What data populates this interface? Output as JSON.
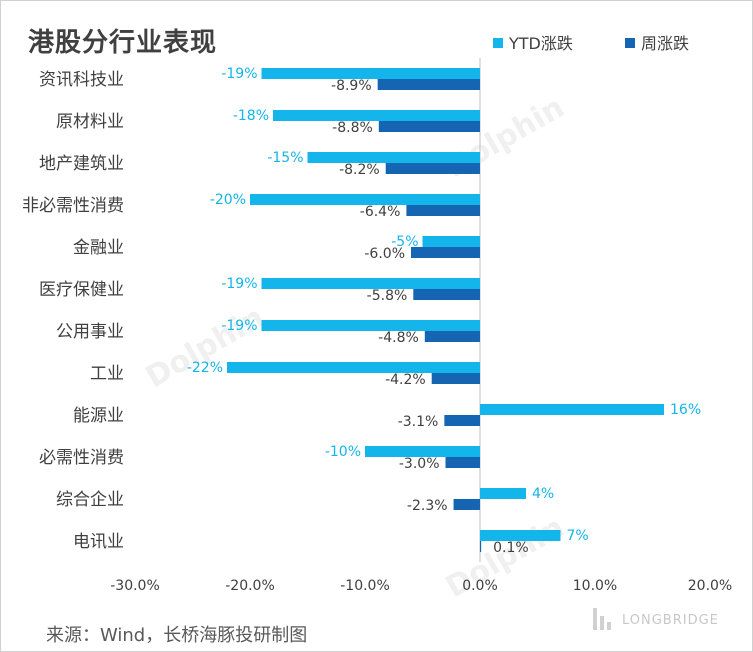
{
  "title": "港股分行业表现",
  "legend": {
    "ytd": "YTD涨跌",
    "weekly": "周涨跌"
  },
  "colors": {
    "ytd": "#13b5ea",
    "weekly": "#1565b2",
    "text": "#404040"
  },
  "source": "来源：Wind，长桥海豚投研制图",
  "watermark": "LONGBRIDGE",
  "chart_data": {
    "type": "bar",
    "orientation": "horizontal",
    "categories": [
      "资讯科技业",
      "原材料业",
      "地产建筑业",
      "非必需性消费",
      "金融业",
      "医疗保健业",
      "公用事业",
      "工业",
      "能源业",
      "必需性消费",
      "综合企业",
      "电讯业"
    ],
    "series": [
      {
        "name": "YTD涨跌",
        "values": [
          -19,
          -18,
          -15,
          -20,
          -5,
          -19,
          -19,
          -22,
          16,
          -10,
          4,
          7
        ],
        "labels": [
          "-19%",
          "-18%",
          "-15%",
          "-20%",
          "-5%",
          "-19%",
          "-19%",
          "-22%",
          "16%",
          "-10%",
          "4%",
          "7%"
        ]
      },
      {
        "name": "周涨跌",
        "values": [
          -8.9,
          -8.8,
          -8.2,
          -6.4,
          -6.0,
          -5.8,
          -4.8,
          -4.2,
          -3.1,
          -3.0,
          -2.3,
          0.1
        ],
        "labels": [
          "-8.9%",
          "-8.8%",
          "-8.2%",
          "-6.4%",
          "-6.0%",
          "-5.8%",
          "-4.8%",
          "-4.2%",
          "-3.1%",
          "-3.0%",
          "-2.3%",
          "0.1%"
        ]
      }
    ],
    "xlim": [
      -30,
      20
    ],
    "xticks": [
      -30,
      -20,
      -10,
      0,
      10,
      20
    ],
    "xtick_labels": [
      "-30.0%",
      "-20.0%",
      "-10.0%",
      "0.0%",
      "10.0%",
      "20.0%"
    ],
    "grid": false
  }
}
